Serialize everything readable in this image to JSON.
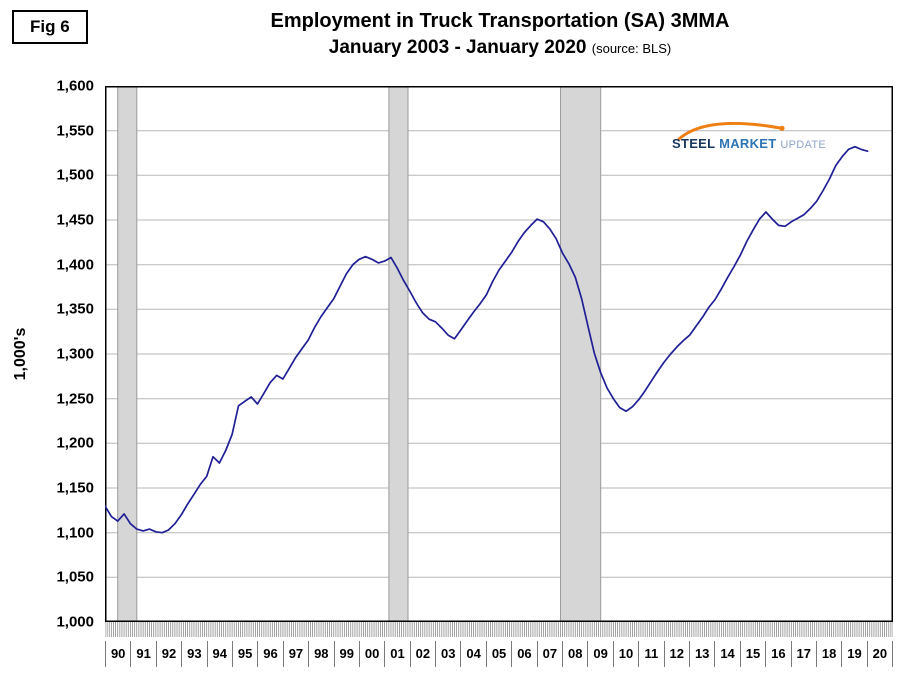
{
  "figure": {
    "label": "Fig 6"
  },
  "logo": {
    "word1": "STEEL",
    "word2": "MARKET",
    "word3": "UPDATE",
    "swoosh_color": "#f07f13"
  },
  "chart_data": {
    "type": "line",
    "title": "Employment in Truck Transportation (SA) 3MMA",
    "subtitle": "January 2003 - January 2020",
    "source_note": "(source: BLS)",
    "ylabel": "1,000's",
    "xlabel": "",
    "ylim": [
      1000,
      1600
    ],
    "y_tick_step": 50,
    "x_domain": [
      1990,
      2021
    ],
    "x_tick_labels": [
      "90",
      "91",
      "92",
      "93",
      "94",
      "95",
      "96",
      "97",
      "98",
      "99",
      "00",
      "01",
      "02",
      "03",
      "04",
      "05",
      "06",
      "07",
      "08",
      "09",
      "10",
      "11",
      "12",
      "13",
      "14",
      "15",
      "16",
      "17",
      "18",
      "19",
      "20"
    ],
    "grid": true,
    "legend": "none",
    "line_color": "#1f1f96",
    "gridline_color": "#b8b8b8",
    "recession_band_color": "#d6d6d6",
    "recession_bands_x": [
      [
        1990.5,
        1991.25
      ],
      [
        2001.17,
        2001.92
      ],
      [
        2007.92,
        2009.5
      ]
    ],
    "series": [
      {
        "name": "Truck Transportation Employment (1,000's, SA, 3MMA)",
        "x_start": 1990.0,
        "x_step": 0.25,
        "values": [
          1130,
          1118,
          1113,
          1121,
          1110,
          1104,
          1102,
          1104,
          1101,
          1100,
          1103,
          1110,
          1120,
          1132,
          1143,
          1154,
          1163,
          1185,
          1178,
          1192,
          1210,
          1242,
          1247,
          1252,
          1244,
          1256,
          1268,
          1276,
          1272,
          1284,
          1296,
          1306,
          1316,
          1330,
          1342,
          1352,
          1362,
          1376,
          1390,
          1400,
          1406,
          1409,
          1406,
          1402,
          1404,
          1408,
          1396,
          1382,
          1370,
          1357,
          1346,
          1339,
          1336,
          1329,
          1321,
          1317,
          1327,
          1337,
          1347,
          1356,
          1366,
          1381,
          1394,
          1404,
          1414,
          1426,
          1436,
          1444,
          1451,
          1448,
          1440,
          1429,
          1413,
          1401,
          1386,
          1362,
          1331,
          1301,
          1279,
          1262,
          1250,
          1240,
          1236,
          1241,
          1249,
          1259,
          1270,
          1281,
          1291,
          1300,
          1308,
          1315,
          1321,
          1331,
          1341,
          1352,
          1361,
          1373,
          1386,
          1398,
          1411,
          1426,
          1439,
          1451,
          1459,
          1451,
          1444,
          1443,
          1448,
          1452,
          1456,
          1463,
          1471,
          1483,
          1496,
          1511,
          1521,
          1529,
          1532,
          1529,
          1527
        ]
      }
    ]
  }
}
